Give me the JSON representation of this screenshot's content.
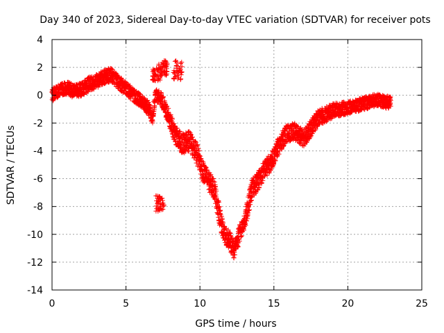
{
  "chart_data": {
    "type": "scatter",
    "title": "Day 340 of 2023, Sidereal Day-to-day VTEC variation (SDTVAR) for receiver pots",
    "xlabel": "GPS time / hours",
    "ylabel": "SDTVAR / TECUs",
    "xlim": [
      0,
      25
    ],
    "ylim": [
      -14,
      4
    ],
    "xticks": [
      0,
      5,
      10,
      15,
      20,
      25
    ],
    "yticks": [
      -14,
      -12,
      -10,
      -8,
      -6,
      -4,
      -2,
      0,
      2,
      4
    ],
    "grid": true,
    "marker": "plus",
    "series": [
      {
        "name": "SDTVAR",
        "color": "#ff0000",
        "trace": [
          [
            0.0,
            0.0
          ],
          [
            0.5,
            0.4
          ],
          [
            1.0,
            0.5
          ],
          [
            1.5,
            0.3
          ],
          [
            2.0,
            0.4
          ],
          [
            2.5,
            0.8
          ],
          [
            3.0,
            1.0
          ],
          [
            3.5,
            1.3
          ],
          [
            4.0,
            1.5
          ],
          [
            4.5,
            0.9
          ],
          [
            5.0,
            0.5
          ],
          [
            5.5,
            0.0
          ],
          [
            6.0,
            -0.4
          ],
          [
            6.5,
            -0.9
          ],
          [
            6.8,
            -1.6
          ],
          [
            7.0,
            0.0
          ],
          [
            7.4,
            -0.3
          ],
          [
            7.8,
            -1.3
          ],
          [
            8.3,
            -2.8
          ],
          [
            8.8,
            -3.5
          ],
          [
            9.3,
            -3.3
          ],
          [
            9.8,
            -4.2
          ],
          [
            10.2,
            -5.5
          ],
          [
            10.6,
            -6.2
          ],
          [
            11.0,
            -6.8
          ],
          [
            11.3,
            -8.5
          ],
          [
            11.6,
            -10.0
          ],
          [
            12.0,
            -10.4
          ],
          [
            12.3,
            -11.2
          ],
          [
            12.7,
            -9.9
          ],
          [
            13.1,
            -8.8
          ],
          [
            13.5,
            -6.8
          ],
          [
            14.0,
            -6.0
          ],
          [
            14.4,
            -5.3
          ],
          [
            14.8,
            -4.8
          ],
          [
            15.3,
            -3.7
          ],
          [
            15.8,
            -2.8
          ],
          [
            16.4,
            -2.6
          ],
          [
            17.0,
            -3.1
          ],
          [
            17.5,
            -2.4
          ],
          [
            18.0,
            -1.6
          ],
          [
            18.5,
            -1.4
          ],
          [
            19.0,
            -1.1
          ],
          [
            19.5,
            -1.0
          ],
          [
            20.0,
            -0.9
          ],
          [
            20.5,
            -0.8
          ],
          [
            21.0,
            -0.6
          ],
          [
            21.5,
            -0.5
          ],
          [
            22.0,
            -0.3
          ],
          [
            22.5,
            -0.5
          ],
          [
            22.9,
            -0.5
          ]
        ],
        "spread": [
          [
            0.0,
            0.9
          ],
          [
            2.0,
            1.0
          ],
          [
            4.0,
            1.0
          ],
          [
            6.0,
            0.9
          ],
          [
            7.5,
            1.0
          ],
          [
            8.5,
            1.4
          ],
          [
            10.0,
            1.5
          ],
          [
            11.5,
            1.3
          ],
          [
            12.5,
            1.2
          ],
          [
            13.5,
            1.4
          ],
          [
            15.5,
            1.2
          ],
          [
            17.5,
            1.2
          ],
          [
            20.0,
            0.9
          ],
          [
            22.9,
            0.9
          ]
        ],
        "extra_clusters": [
          {
            "x": [
              6.8,
              7.4
            ],
            "y": [
              1.0,
              2.0
            ]
          },
          {
            "x": [
              7.2,
              7.8
            ],
            "y": [
              1.4,
              2.5
            ]
          },
          {
            "x": [
              8.2,
              8.8
            ],
            "y": [
              1.0,
              2.5
            ]
          },
          {
            "x": [
              7.0,
              7.6
            ],
            "y": [
              -8.4,
              -7.2
            ]
          }
        ]
      }
    ]
  }
}
